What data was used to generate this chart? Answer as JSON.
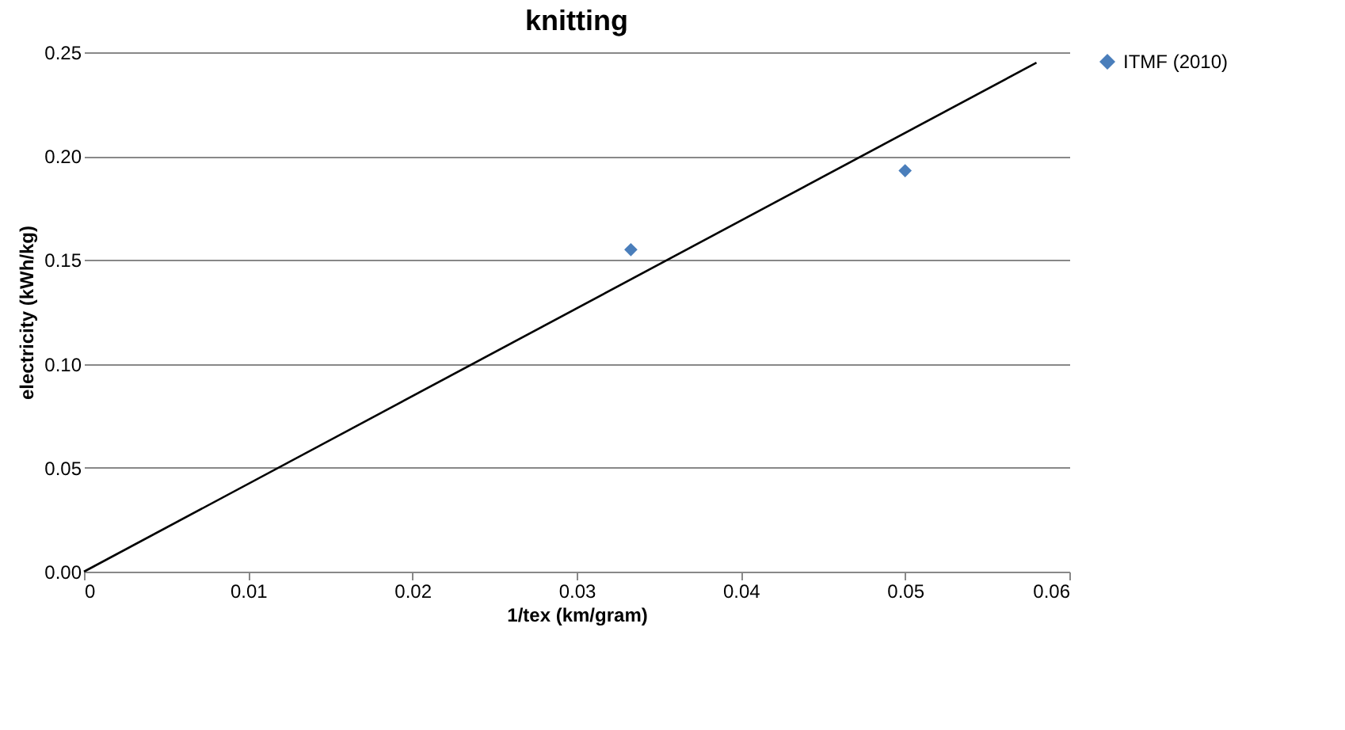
{
  "chart_data": {
    "type": "scatter",
    "title": "knitting",
    "xlabel": "1/tex (km/gram)",
    "ylabel": "electricity (kWh/kg)",
    "x": [
      0.0333,
      0.05
    ],
    "series": [
      {
        "name": "ITMF (2010)",
        "color": "#4a7ebb",
        "values": [
          0.155,
          0.193
        ],
        "marker": "diamond"
      },
      {
        "type": "line",
        "color": "#000000",
        "x": [
          0,
          0.058
        ],
        "values": [
          0,
          0.245
        ]
      }
    ],
    "xlim": [
      0,
      0.06
    ],
    "xticks": [
      0,
      0.01,
      0.02,
      0.03,
      0.04,
      0.05,
      0.06
    ],
    "ylim": [
      0,
      0.25
    ],
    "yticks": [
      {
        "value": 0,
        "label": "0.00"
      },
      0.05,
      {
        "value": 0.1,
        "label": "0.10"
      },
      0.15,
      {
        "value": 0.2,
        "label": "0.20"
      },
      0.25
    ],
    "grid": "y",
    "legend": "right"
  }
}
